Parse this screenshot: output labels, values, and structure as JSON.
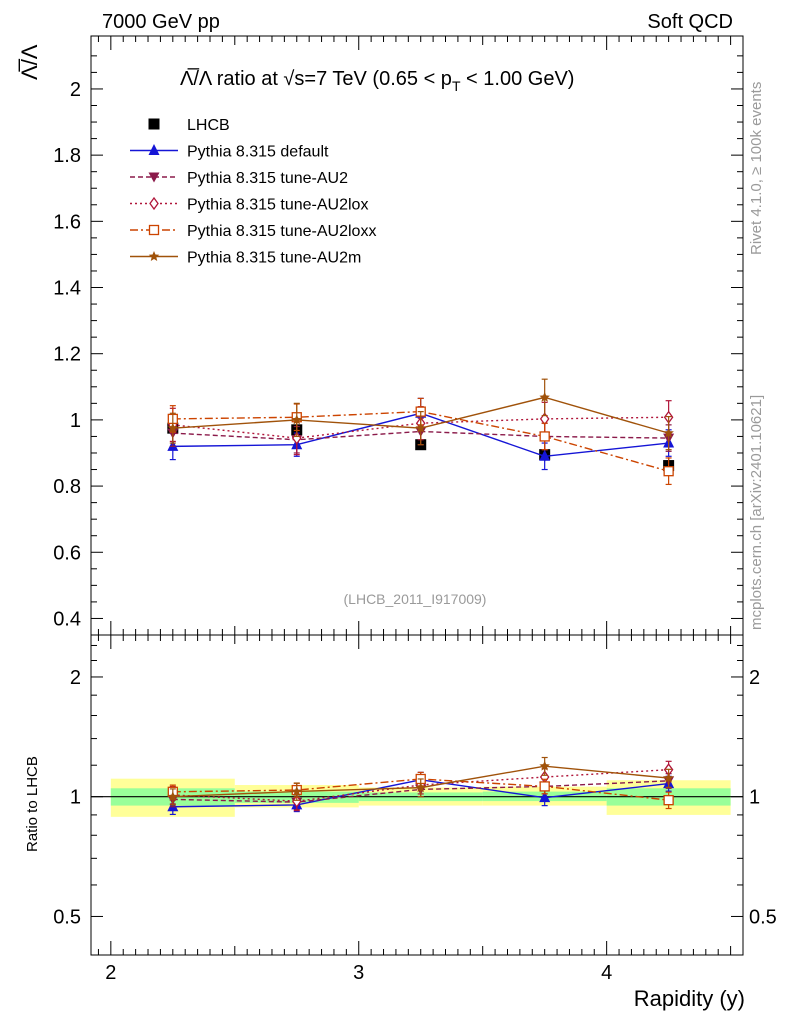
{
  "header": {
    "left": "7000 GeV pp",
    "right": "Soft QCD"
  },
  "side_labels": {
    "rivet": "Rivet 4.1.0, ≥ 100k events",
    "mcplots": "mcplots.cern.ch [arXiv:2401.10621]"
  },
  "chart_data": {
    "type": "line",
    "title": {
      "prefix": "Λ̅/Λ ratio at √s=7 TeV (0.65 < p",
      "sub": "T",
      "suffix": " < 1.00 GeV)"
    },
    "ylabel": "Λ̅/Λ",
    "xlabel": "Rapidity (y)",
    "analysis_tag": "(LHCB_2011_I917009)",
    "xlim": [
      1.92,
      4.55
    ],
    "ylim": [
      0.35,
      2.16
    ],
    "yticks": [
      0.4,
      0.6,
      0.8,
      1,
      1.2,
      1.4,
      1.6,
      1.8,
      2
    ],
    "ytick_labels": [
      "0.4",
      "0.6",
      "0.8",
      "1",
      "1.2",
      "1.4",
      "1.6",
      "1.8",
      "2"
    ],
    "xticks": [
      2,
      3,
      4
    ],
    "xtick_labels": [
      "2",
      "3",
      "4"
    ],
    "x": [
      2.25,
      2.75,
      3.25,
      3.75,
      4.25
    ],
    "bin_edges": [
      2.0,
      2.5,
      3.0,
      3.5,
      4.0,
      4.5
    ],
    "reference": {
      "name": "LHCB",
      "color": "#000000",
      "values": [
        0.975,
        0.97,
        0.925,
        0.895,
        0.862
      ],
      "errors": [
        0.02,
        0.02,
        0.015,
        0.02,
        0.025
      ]
    },
    "series": [
      {
        "name": "Pythia 8.315 default",
        "color": "#1515d6",
        "dash": "",
        "marker": "triangle-up",
        "values": [
          0.92,
          0.925,
          1.02,
          0.89,
          0.93
        ],
        "errors": [
          0.04,
          0.035,
          0.045,
          0.04,
          0.04
        ]
      },
      {
        "name": "Pythia 8.315 tune-AU2",
        "color": "#8b1a4a",
        "dash": "5,3",
        "marker": "triangle-down",
        "values": [
          0.96,
          0.94,
          0.965,
          0.95,
          0.945
        ],
        "errors": [
          0.04,
          0.04,
          0.04,
          0.04,
          0.04
        ]
      },
      {
        "name": "Pythia 8.315 tune-AU2lox",
        "color": "#b0163a",
        "dash": "2,3",
        "marker": "diamond-open",
        "values": [
          0.985,
          0.945,
          0.99,
          1.003,
          1.008
        ],
        "errors": [
          0.05,
          0.05,
          0.05,
          0.05,
          0.05
        ]
      },
      {
        "name": "Pythia 8.315 tune-AU2loxx",
        "color": "#cc4400",
        "dash": "8,3,2,3",
        "marker": "square-open",
        "values": [
          1.003,
          1.008,
          1.025,
          0.95,
          0.845
        ],
        "errors": [
          0.04,
          0.04,
          0.04,
          0.04,
          0.04
        ]
      },
      {
        "name": "Pythia 8.315 tune-AU2m",
        "color": "#a0520a",
        "dash": "",
        "marker": "star",
        "values": [
          0.975,
          1.0,
          0.975,
          1.068,
          0.96
        ],
        "errors": [
          0.045,
          0.05,
          0.05,
          0.055,
          0.05
        ]
      }
    ],
    "ratio": {
      "ylabel": "Ratio to LHCB",
      "ylim_log": [
        0.4,
        2.55
      ],
      "yticks": [
        0.5,
        1,
        2
      ],
      "ytick_labels": [
        "0.5",
        "1",
        "2"
      ],
      "band_inner": [
        [
          0.95,
          1.05
        ],
        [
          0.965,
          1.03
        ],
        [
          0.975,
          1.025
        ],
        [
          0.975,
          1.03
        ],
        [
          0.95,
          1.05
        ]
      ],
      "band_outer": [
        [
          0.89,
          1.11
        ],
        [
          0.94,
          1.07
        ],
        [
          0.95,
          1.055
        ],
        [
          0.95,
          1.06
        ],
        [
          0.9,
          1.1
        ]
      ]
    }
  }
}
